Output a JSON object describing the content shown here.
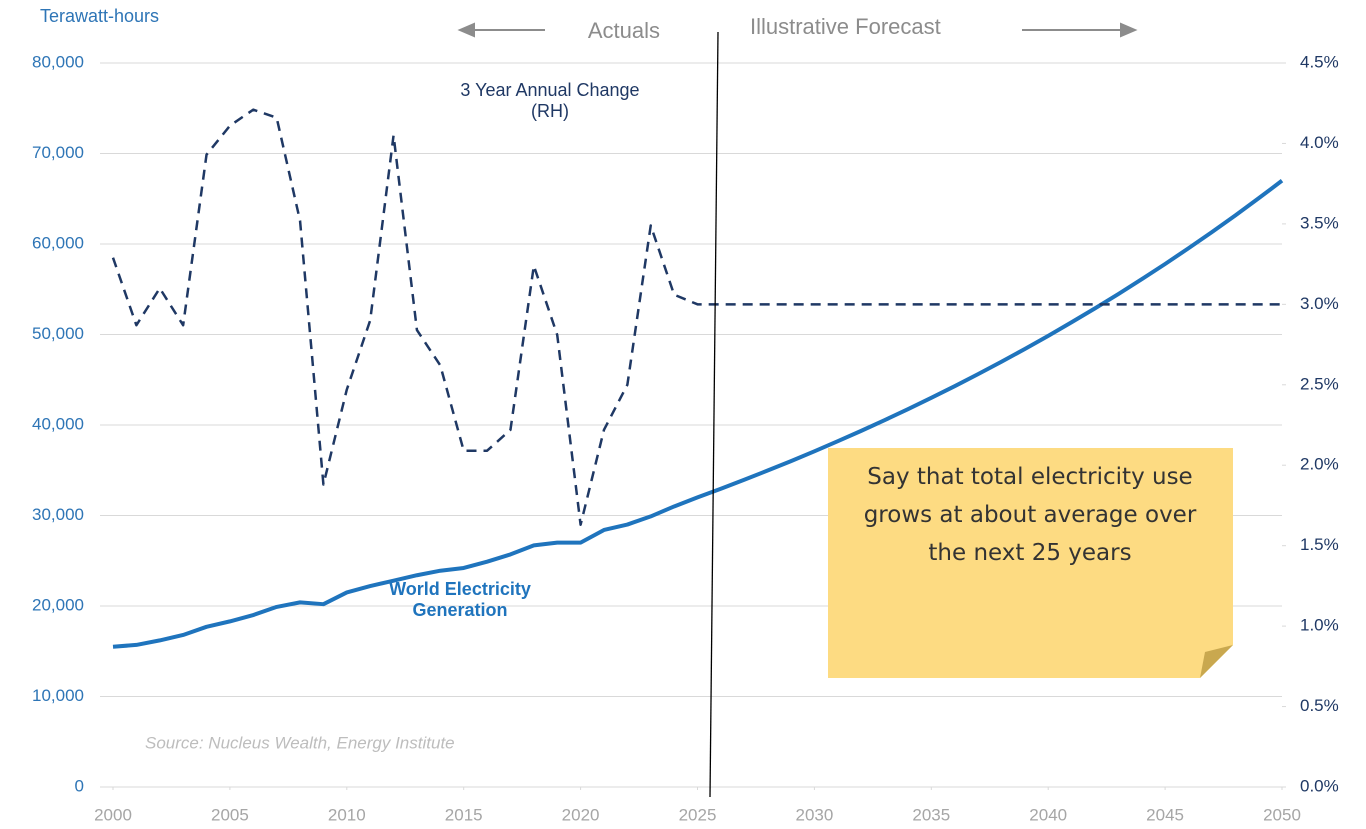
{
  "chart_data": {
    "type": "line",
    "y_label": "Terawatt-hours",
    "actuals_label": "Actuals",
    "forecast_label": "Illustrative Forecast",
    "source": "Source: Nucleus Wealth, Energy Institute",
    "note": "Say that total electricity use grows at about average over the next 25 years",
    "x": [
      2000,
      2001,
      2002,
      2003,
      2004,
      2005,
      2006,
      2007,
      2008,
      2009,
      2010,
      2011,
      2012,
      2013,
      2014,
      2015,
      2016,
      2017,
      2018,
      2019,
      2020,
      2021,
      2022,
      2023,
      2024,
      2025,
      2026,
      2027,
      2028,
      2029,
      2030,
      2031,
      2032,
      2033,
      2034,
      2035,
      2036,
      2037,
      2038,
      2039,
      2040,
      2041,
      2042,
      2043,
      2044,
      2045,
      2046,
      2047,
      2048,
      2049,
      2050
    ],
    "xlim": [
      2000,
      2050
    ],
    "xticks": [
      2000,
      2005,
      2010,
      2015,
      2020,
      2025,
      2030,
      2035,
      2040,
      2045,
      2050
    ],
    "ylim": [
      0,
      80000
    ],
    "yticks": [
      0,
      {
        "value": 10000,
        "label": "10,000"
      },
      {
        "value": 20000,
        "label": "20,000"
      },
      {
        "value": 30000,
        "label": "30,000"
      },
      {
        "value": 40000,
        "label": "40,000"
      },
      {
        "value": 50000,
        "label": "50,000"
      },
      {
        "value": 60000,
        "label": "60,000"
      },
      {
        "value": 70000,
        "label": "70,000"
      },
      {
        "value": 80000,
        "label": "80,000"
      }
    ],
    "y2lim": [
      0,
      4.5
    ],
    "y2ticks": [
      {
        "value": 0,
        "label": "0.0%"
      },
      {
        "value": 0.5,
        "label": "0.5%"
      },
      {
        "value": 1,
        "label": "1.0%"
      },
      {
        "value": 1.5,
        "label": "1.5%"
      },
      {
        "value": 2,
        "label": "2.0%"
      },
      {
        "value": 2.5,
        "label": "2.5%"
      },
      {
        "value": 3,
        "label": "3.0%"
      },
      {
        "value": 3.5,
        "label": "3.5%"
      },
      {
        "value": 4,
        "label": "4.0%"
      },
      {
        "value": 4.5,
        "label": "4.5%"
      }
    ],
    "grid": true,
    "series": [
      {
        "name": "World Electricity Generation",
        "color": "#1f74bd",
        "dashed": false,
        "values": [
          15500,
          15700,
          16200,
          16800,
          17700,
          18300,
          19000,
          19900,
          20400,
          20200,
          21500,
          22200,
          22800,
          23400,
          23900,
          24200,
          24900,
          25700,
          26700,
          27000,
          27000,
          28400,
          29000,
          29900,
          31000,
          32000,
          32960,
          33950,
          34970,
          36010,
          37090,
          38210,
          39350,
          40530,
          41750,
          43000,
          44290,
          45620,
          46990,
          48400,
          49850,
          51350,
          52890,
          54470,
          56110,
          57790,
          59530,
          61310,
          63150,
          65050,
          67000
        ]
      },
      {
        "name": "3 Year Annual Change (RH)",
        "color": "#1f3864",
        "dashed": true,
        "axis": "y2",
        "values": [
          3.29,
          2.87,
          3.1,
          2.87,
          3.93,
          4.11,
          4.21,
          4.16,
          3.52,
          1.88,
          2.47,
          2.9,
          4.05,
          2.84,
          2.62,
          2.09,
          2.09,
          2.22,
          3.24,
          2.81,
          1.63,
          2.22,
          2.5,
          3.49,
          3.06,
          3.0,
          3.0,
          3.0,
          3.0,
          3.0,
          3.0,
          3.0,
          3.0,
          3.0,
          3.0,
          3.0,
          3.0,
          3.0,
          3.0,
          3.0,
          3.0,
          3.0,
          3.0,
          3.0,
          3.0,
          3.0,
          3.0,
          3.0,
          3.0,
          3.0,
          3.0
        ]
      }
    ]
  }
}
